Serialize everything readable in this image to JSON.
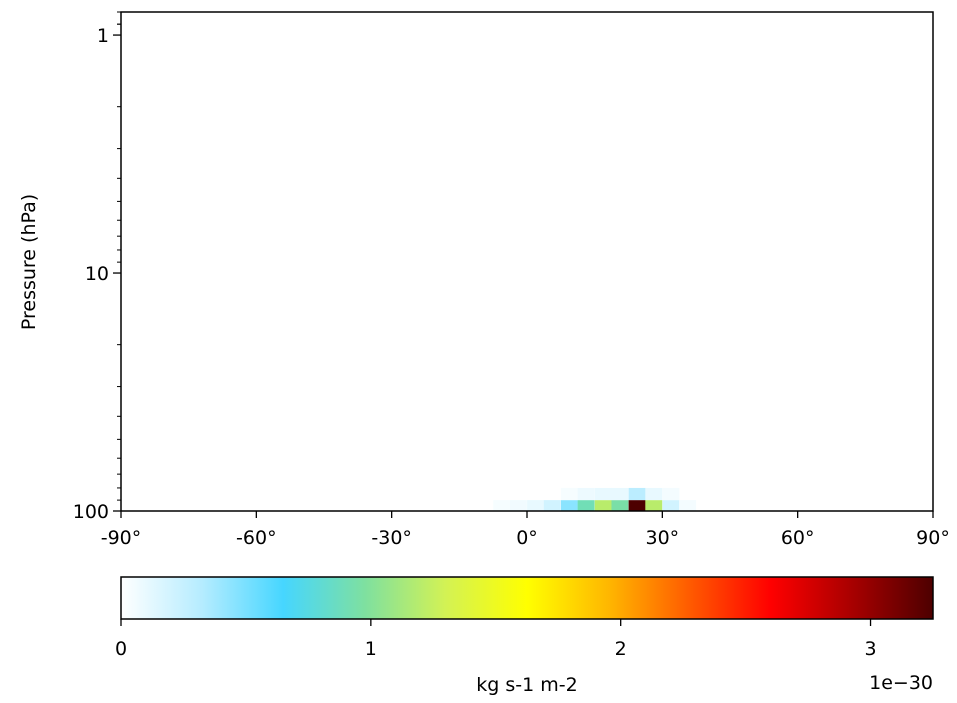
{
  "chart_data": {
    "type": "heatmap",
    "title": "",
    "xlabel": "",
    "ylabel": "Pressure (hPa)",
    "xlim": [
      -90,
      90
    ],
    "ylim": [
      100,
      0.8
    ],
    "yscale": "log",
    "x_ticks": [
      {
        "value": -90,
        "label": "-90°"
      },
      {
        "value": -60,
        "label": "-60°"
      },
      {
        "value": -30,
        "label": "-30°"
      },
      {
        "value": 0,
        "label": "0°"
      },
      {
        "value": 30,
        "label": "30°"
      },
      {
        "value": 60,
        "label": "60°"
      },
      {
        "value": 90,
        "label": "90°"
      }
    ],
    "y_ticks": [
      {
        "value": 1,
        "label": "1"
      },
      {
        "value": 10,
        "label": "10"
      },
      {
        "value": 100,
        "label": "100"
      }
    ],
    "cell_size": {
      "dlat": 3.75,
      "levels": [
        100,
        90
      ]
    },
    "cells": [
      {
        "lat": -5.6,
        "p_bottom": 100,
        "p_top": 90,
        "value": 0.04
      },
      {
        "lat": -1.9,
        "p_bottom": 100,
        "p_top": 90,
        "value": 0.06
      },
      {
        "lat": 1.9,
        "p_bottom": 100,
        "p_top": 90,
        "value": 0.1
      },
      {
        "lat": 5.6,
        "p_bottom": 100,
        "p_top": 90,
        "value": 0.2
      },
      {
        "lat": 9.4,
        "p_bottom": 100,
        "p_top": 90,
        "value": 0.45
      },
      {
        "lat": 13.1,
        "p_bottom": 100,
        "p_top": 90,
        "value": 0.9
      },
      {
        "lat": 16.9,
        "p_bottom": 100,
        "p_top": 90,
        "value": 1.2
      },
      {
        "lat": 20.6,
        "p_bottom": 100,
        "p_top": 90,
        "value": 0.95
      },
      {
        "lat": 24.4,
        "p_bottom": 100,
        "p_top": 90,
        "value": 3.25
      },
      {
        "lat": 28.1,
        "p_bottom": 100,
        "p_top": 90,
        "value": 1.2
      },
      {
        "lat": 31.9,
        "p_bottom": 100,
        "p_top": 90,
        "value": 0.2
      },
      {
        "lat": 35.6,
        "p_bottom": 100,
        "p_top": 90,
        "value": 0.05
      },
      {
        "lat": 9.4,
        "p_bottom": 90,
        "p_top": 80,
        "value": 0.04
      },
      {
        "lat": 13.1,
        "p_bottom": 90,
        "p_top": 80,
        "value": 0.08
      },
      {
        "lat": 16.9,
        "p_bottom": 90,
        "p_top": 80,
        "value": 0.1
      },
      {
        "lat": 20.6,
        "p_bottom": 90,
        "p_top": 80,
        "value": 0.1
      },
      {
        "lat": 24.4,
        "p_bottom": 90,
        "p_top": 80,
        "value": 0.3
      },
      {
        "lat": 28.1,
        "p_bottom": 90,
        "p_top": 80,
        "value": 0.1
      },
      {
        "lat": 31.9,
        "p_bottom": 90,
        "p_top": 80,
        "value": 0.05
      }
    ],
    "colorbar": {
      "label": "kg s-1 m-2",
      "scale_text": "1e−30",
      "vmin": 0,
      "vmax": 3.25,
      "ticks": [
        {
          "value": 0,
          "label": "0"
        },
        {
          "value": 1,
          "label": "1"
        },
        {
          "value": 2,
          "label": "2"
        },
        {
          "value": 3,
          "label": "3"
        }
      ],
      "colors": [
        "#ffffff",
        "#b5ecff",
        "#46d6ff",
        "#7ee0a0",
        "#d3f254",
        "#ffff00",
        "#ffb700",
        "#ff5b00",
        "#ff0000",
        "#a80000",
        "#4d0000"
      ]
    }
  }
}
